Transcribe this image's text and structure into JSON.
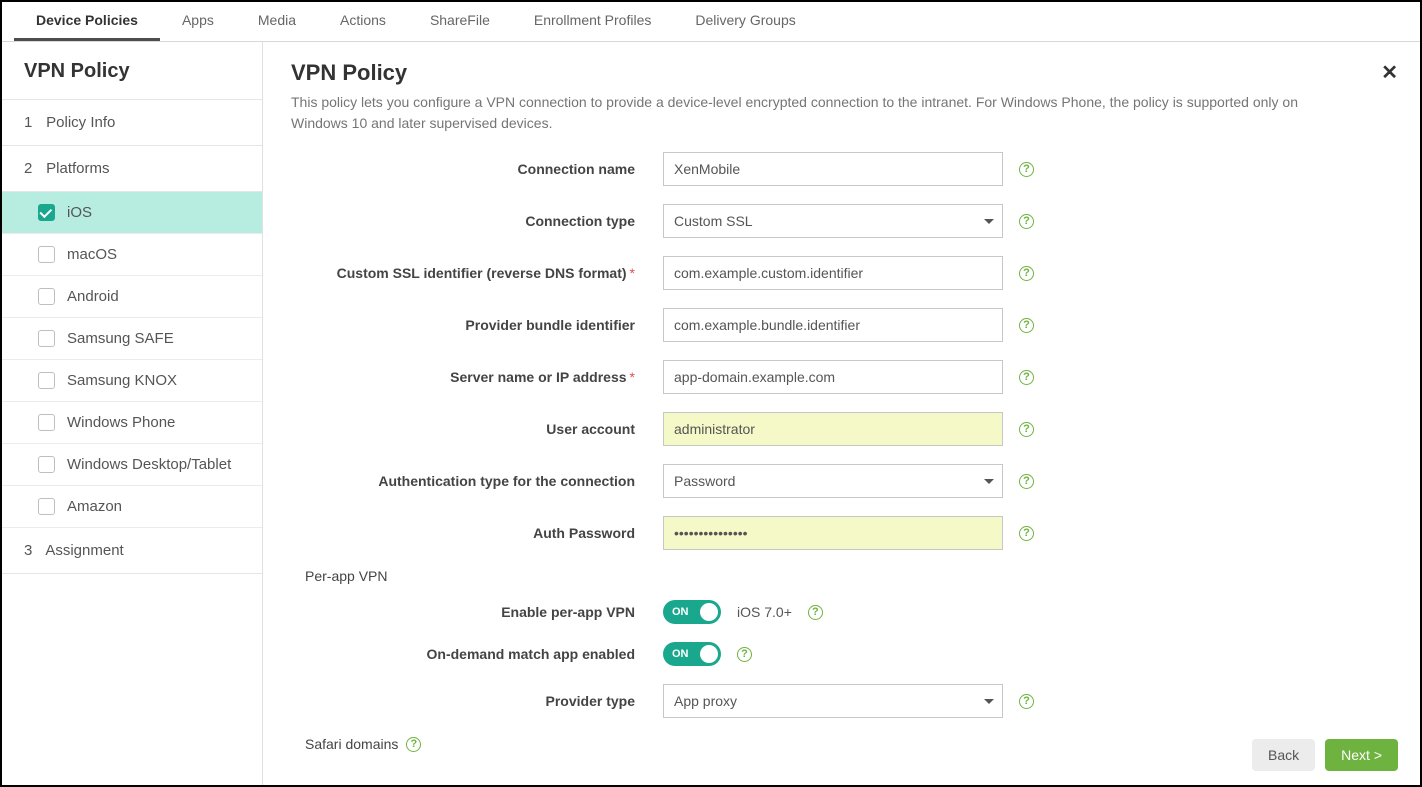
{
  "topTabs": {
    "items": [
      "Device Policies",
      "Apps",
      "Media",
      "Actions",
      "ShareFile",
      "Enrollment Profiles",
      "Delivery Groups"
    ],
    "activeIndex": 0
  },
  "sidebar": {
    "title": "VPN Policy",
    "steps": {
      "s1": {
        "num": "1",
        "label": "Policy Info"
      },
      "s2": {
        "num": "2",
        "label": "Platforms"
      },
      "s3": {
        "num": "3",
        "label": "Assignment"
      }
    },
    "platforms": [
      {
        "label": "iOS",
        "checked": true,
        "active": true
      },
      {
        "label": "macOS",
        "checked": false,
        "active": false
      },
      {
        "label": "Android",
        "checked": false,
        "active": false
      },
      {
        "label": "Samsung SAFE",
        "checked": false,
        "active": false
      },
      {
        "label": "Samsung KNOX",
        "checked": false,
        "active": false
      },
      {
        "label": "Windows Phone",
        "checked": false,
        "active": false
      },
      {
        "label": "Windows Desktop/Tablet",
        "checked": false,
        "active": false
      },
      {
        "label": "Amazon",
        "checked": false,
        "active": false
      }
    ]
  },
  "main": {
    "title": "VPN Policy",
    "description": "This policy lets you configure a VPN connection to provide a device-level encrypted connection to the intranet. For Windows Phone, the policy is supported only on Windows 10 and later supervised devices.",
    "labels": {
      "connectionName": "Connection name",
      "connectionType": "Connection type",
      "customSSL": "Custom SSL identifier (reverse DNS format)",
      "providerBundle": "Provider bundle identifier",
      "serverName": "Server name or IP address",
      "userAccount": "User account",
      "authType": "Authentication type for the connection",
      "authPassword": "Auth Password",
      "perAppVpn": "Per-app VPN",
      "enablePerApp": "Enable per-app VPN",
      "onDemand": "On-demand match app enabled",
      "providerType": "Provider type",
      "safariDomains": "Safari domains"
    },
    "values": {
      "connectionName": "XenMobile",
      "connectionType": "Custom SSL",
      "customSSL": "com.example.custom.identifier",
      "providerBundle": "com.example.bundle.identifier",
      "serverName": "app-domain.example.com",
      "userAccount": "administrator",
      "authType": "Password",
      "authPassword": "•••••••••••••••",
      "providerType": "App proxy",
      "perAppHint": "iOS 7.0+",
      "toggleOn": "ON"
    },
    "buttons": {
      "back": "Back",
      "next": "Next >"
    }
  },
  "colors": {
    "accent": "#19a88d",
    "green": "#6eb33f",
    "yellow": "#f5f9c8"
  }
}
